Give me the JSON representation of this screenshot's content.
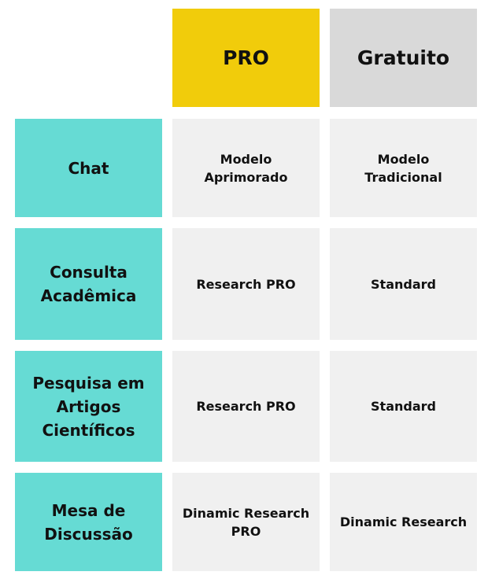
{
  "columns": {
    "pro": "PRO",
    "free": "Gratuito"
  },
  "rows": [
    {
      "label": "Chat",
      "pro": "Modelo Aprimorado",
      "free": "Modelo Tradicional"
    },
    {
      "label": "Consulta Acadêmica",
      "pro": "Research PRO",
      "free": "Standard"
    },
    {
      "label": "Pesquisa em Artigos Científicos",
      "pro": "Research PRO",
      "free": "Standard"
    },
    {
      "label": "Mesa de Discussão",
      "pro": "Dinamic Research PRO",
      "free": "Dinamic Research"
    }
  ],
  "colors": {
    "pro_header": "#f1cc0b",
    "free_header": "#d9d9d9",
    "row_header": "#66dbd4",
    "value_cell": "#f0f0f0"
  }
}
